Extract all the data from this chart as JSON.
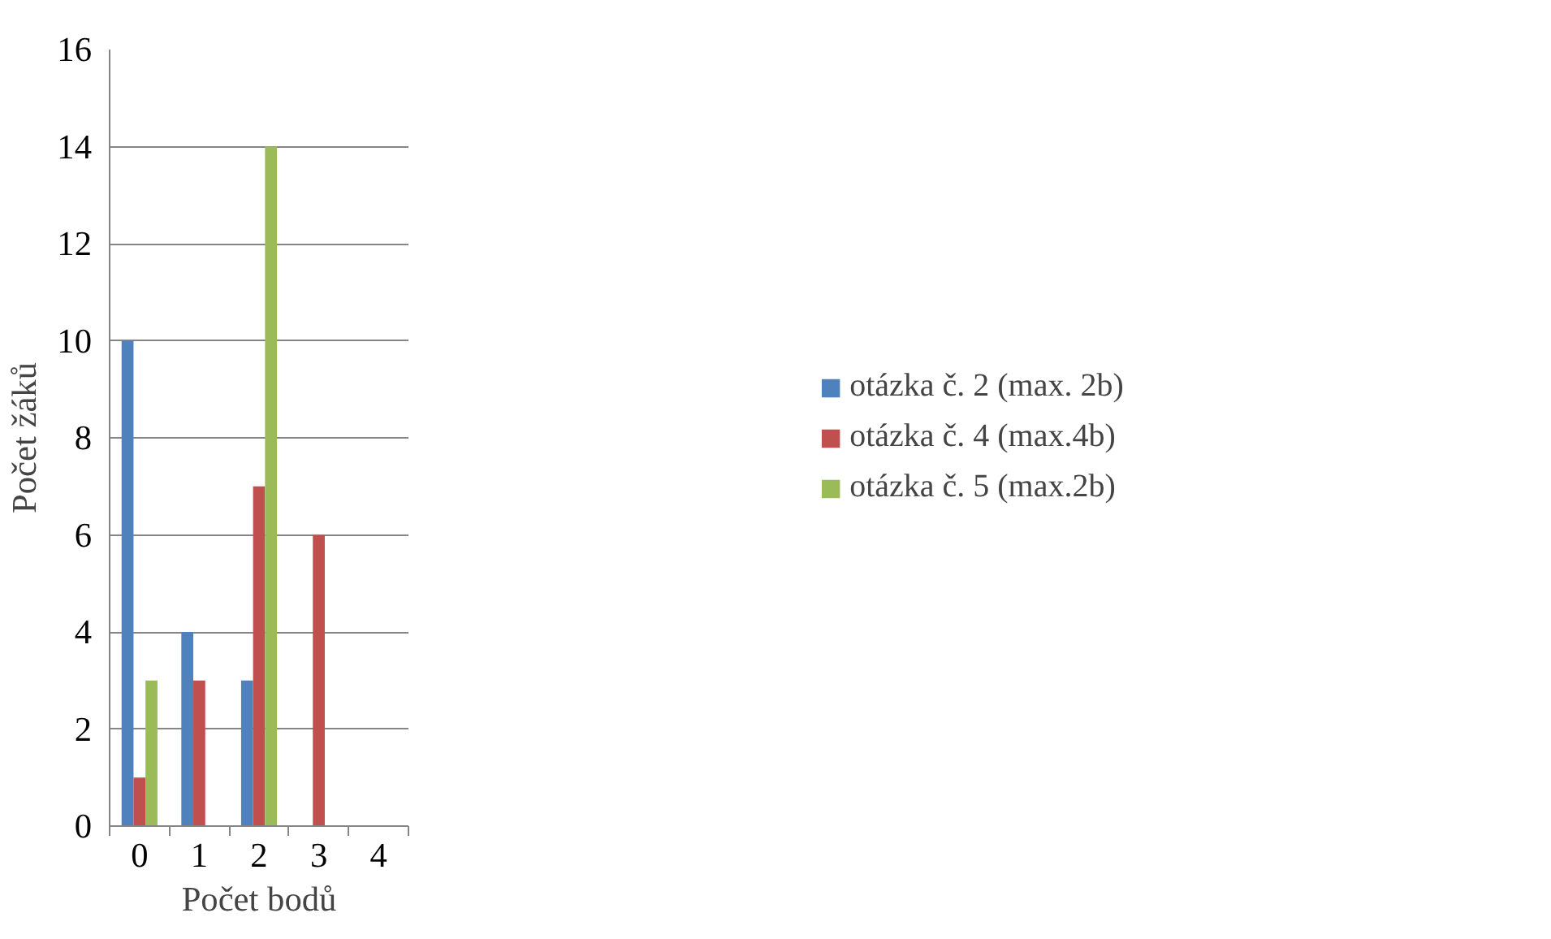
{
  "chart_data": {
    "type": "bar",
    "xlabel": "Počet bodů",
    "ylabel": "Počet žáků",
    "categories": [
      "0",
      "1",
      "2",
      "3",
      "4"
    ],
    "series": [
      {
        "name": "otázka č. 2 (max. 2b)",
        "color": "#4f81bd",
        "values": [
          10,
          4,
          3,
          0,
          0
        ]
      },
      {
        "name": "otázka č. 4 (max.4b)",
        "color": "#c0504d",
        "values": [
          1,
          3,
          7,
          6,
          0
        ]
      },
      {
        "name": "otázka č. 5 (max.2b)",
        "color": "#9bbb59",
        "values": [
          3,
          0,
          14,
          0,
          0
        ]
      }
    ],
    "ylim": [
      0,
      16
    ],
    "yticks": [
      0,
      2,
      4,
      6,
      8,
      10,
      12,
      14,
      16
    ],
    "grid": "y",
    "legend": "right"
  }
}
